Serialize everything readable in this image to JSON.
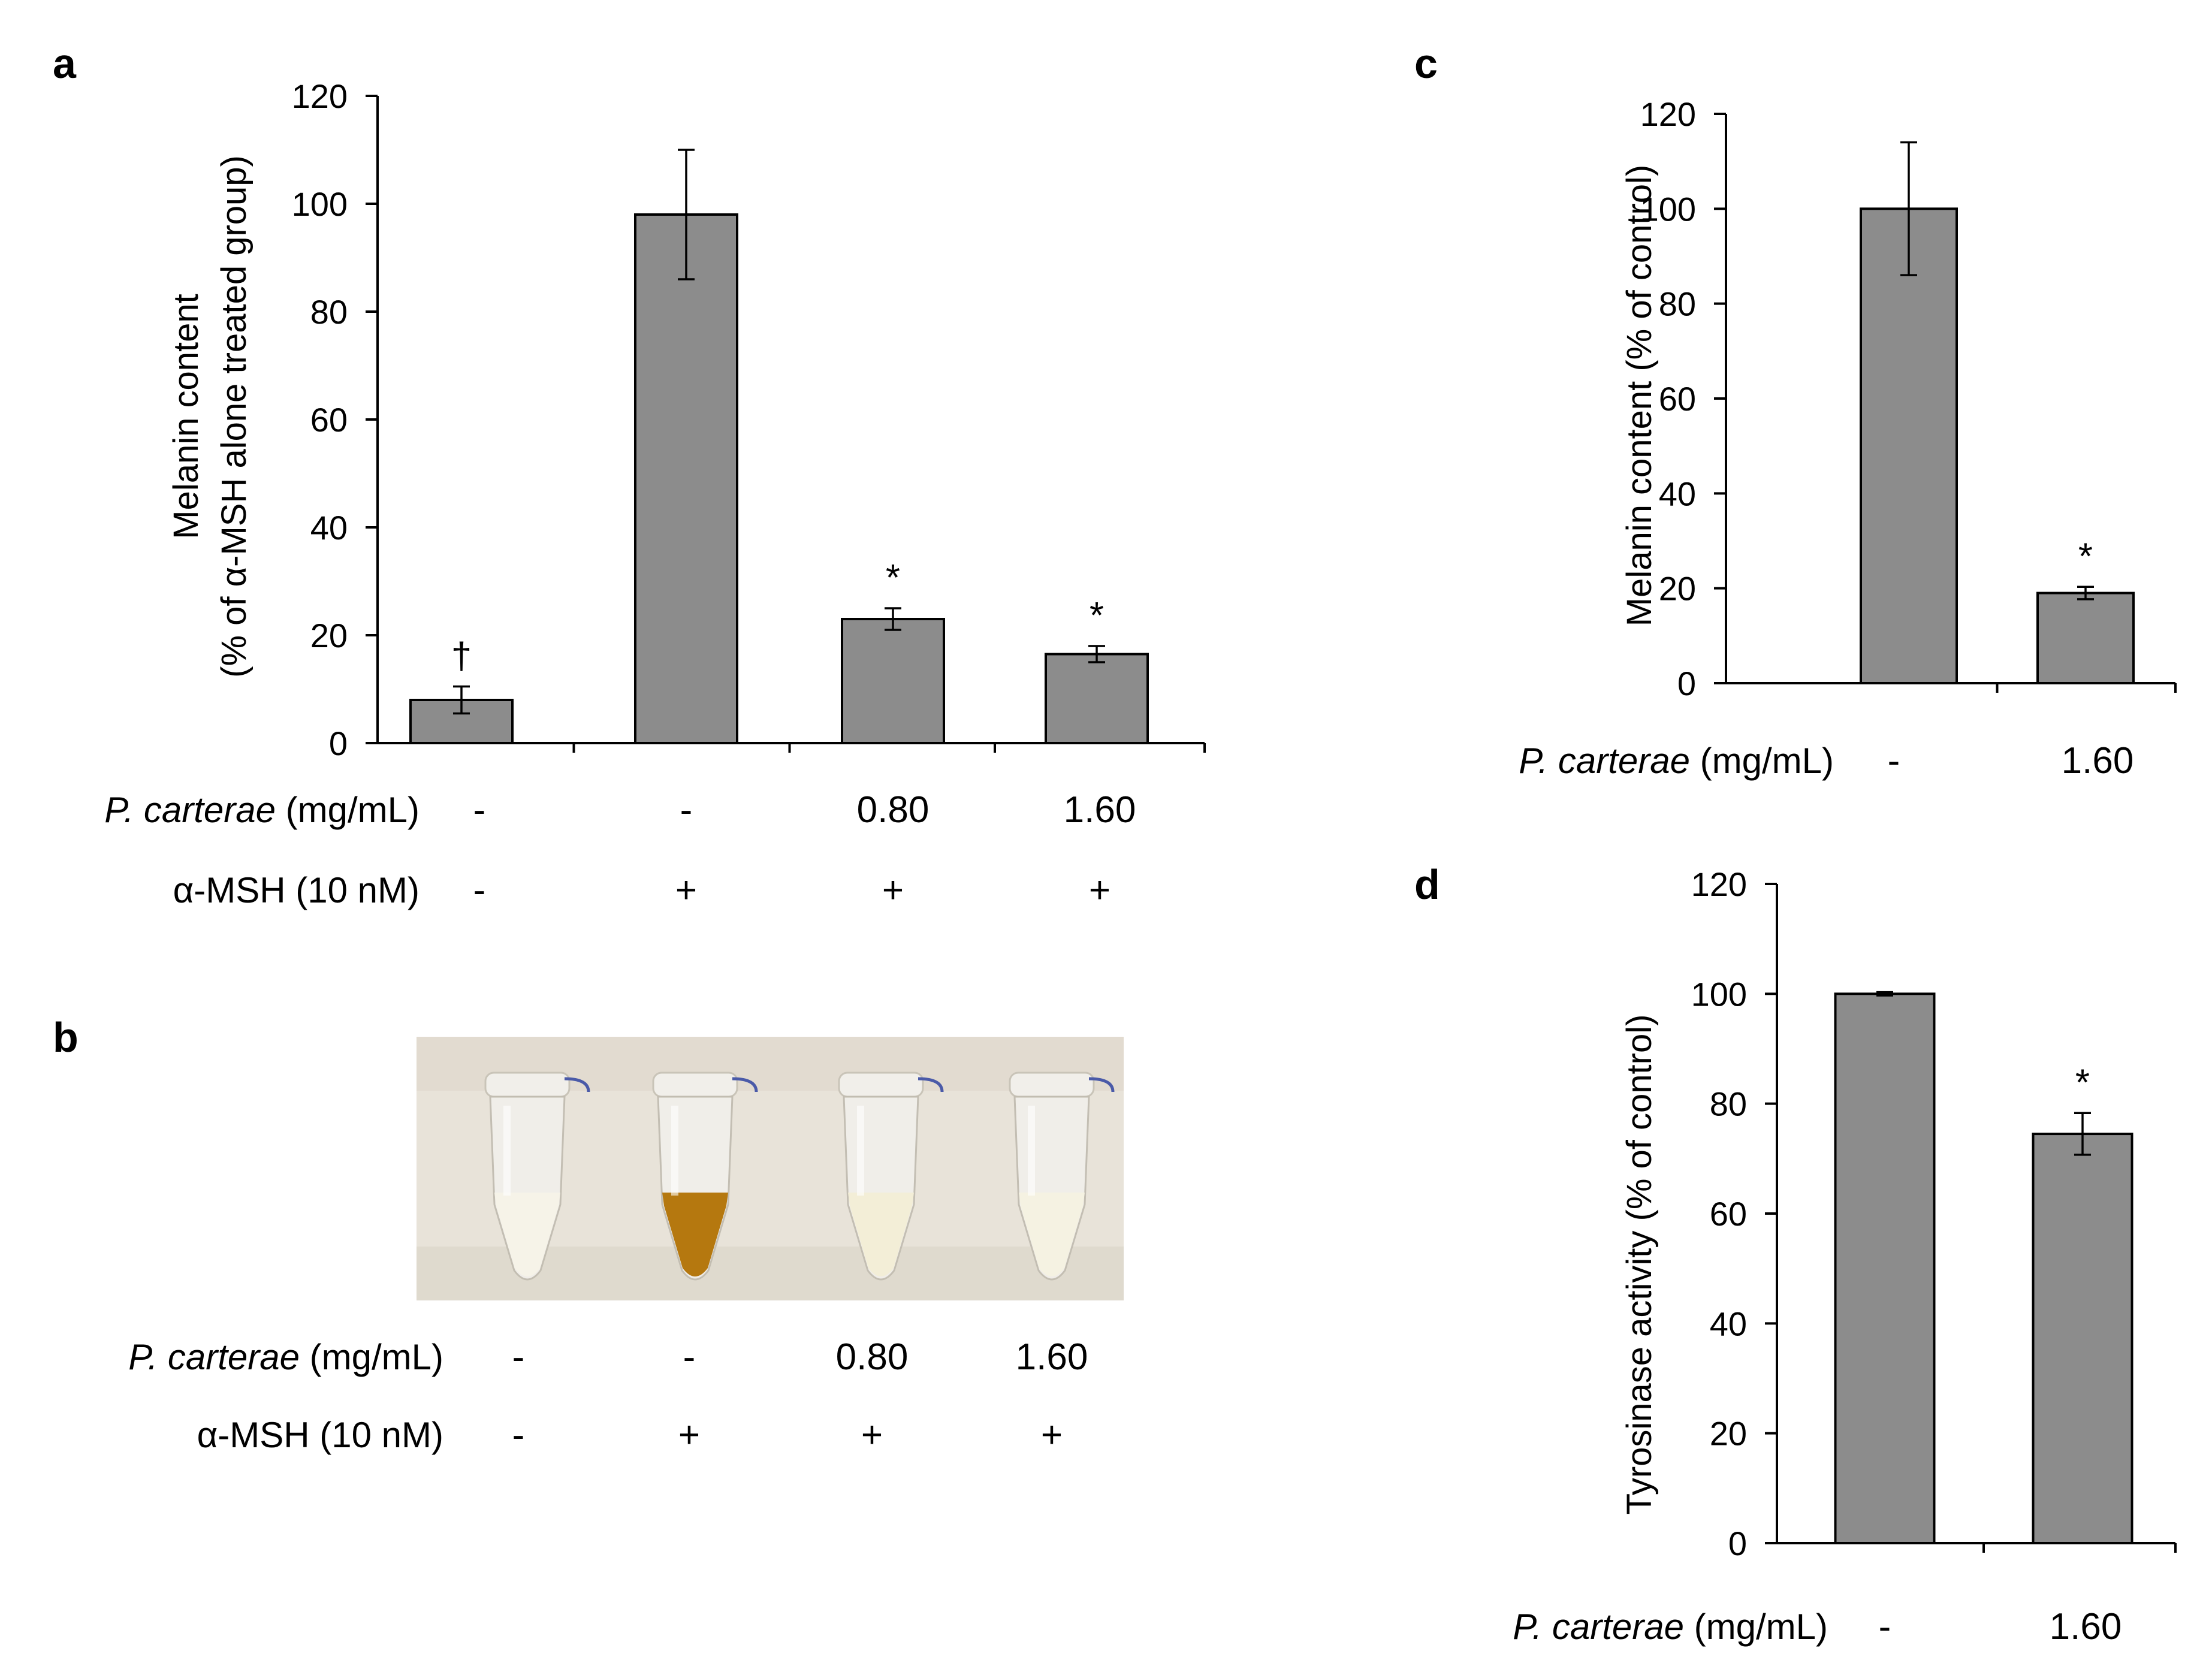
{
  "colors": {
    "bar_fill": "#8c8c8c",
    "bar_stroke": "#000000",
    "axis": "#000000",
    "photo_background": "#e8e3d9",
    "tube_plastic": "#f1efea",
    "liquid_control": "#f6f3e8",
    "liquid_msh": "#b5780f",
    "liquid_low_dose": "#f3eed7",
    "liquid_high_dose": "#f5f2e2"
  },
  "chart_data": [
    {
      "panel": "a",
      "type": "bar",
      "panel_label": "a",
      "ylabel_line1": "Melanin content",
      "ylabel_line2": "(% of α-MSH alone treated group)",
      "ylim": [
        0,
        120
      ],
      "ytick_step": 20,
      "yticks": [
        "0",
        "20",
        "40",
        "60",
        "80",
        "100",
        "120"
      ],
      "values": [
        8,
        98,
        23,
        16.5
      ],
      "errors": [
        2.5,
        12,
        2,
        1.5
      ],
      "annotations": [
        "†",
        "",
        "*",
        "*"
      ],
      "row_labels": [
        {
          "species": "P. carterae",
          "unit": " (mg/mL)",
          "cells": [
            "-",
            "-",
            "0.80",
            "1.60"
          ]
        },
        {
          "species": "",
          "unit": "α-MSH (10 nM)",
          "cells": [
            "-",
            "+",
            "+",
            "+"
          ]
        }
      ]
    },
    {
      "panel": "c",
      "type": "bar",
      "panel_label": "c",
      "ylabel_line1": "Melanin content  (% of control)",
      "ylim": [
        0,
        120
      ],
      "ytick_step": 20,
      "yticks": [
        "0",
        "20",
        "40",
        "60",
        "80",
        "100",
        "120"
      ],
      "values": [
        100,
        19
      ],
      "errors": [
        14,
        1.3
      ],
      "annotations": [
        "",
        "*"
      ],
      "row_labels": [
        {
          "species": "P. carterae",
          "unit": " (mg/mL)",
          "cells": [
            "-",
            "1.60"
          ]
        }
      ]
    },
    {
      "panel": "d",
      "type": "bar",
      "panel_label": "d",
      "ylabel_line1": "Tyrosinase activity (% of control)",
      "ylim": [
        0,
        120
      ],
      "ytick_step": 20,
      "yticks": [
        "0",
        "20",
        "40",
        "60",
        "80",
        "100",
        "120"
      ],
      "values": [
        100,
        74.5
      ],
      "errors": [
        0.3,
        3.8
      ],
      "annotations": [
        "",
        "*"
      ],
      "row_labels": [
        {
          "species": "P. carterae",
          "unit": " (mg/mL)",
          "cells": [
            "-",
            "1.60"
          ]
        }
      ]
    }
  ],
  "panel_b": {
    "panel_label": "b",
    "tubes": [
      "control",
      "msh",
      "low_dose",
      "high_dose"
    ],
    "row_labels": [
      {
        "species": "P. carterae",
        "unit": " (mg/mL)",
        "cells": [
          "-",
          "-",
          "0.80",
          "1.60"
        ]
      },
      {
        "species": "",
        "unit": "α-MSH (10 nM)",
        "cells": [
          "-",
          "+",
          "+",
          "+"
        ]
      }
    ]
  }
}
